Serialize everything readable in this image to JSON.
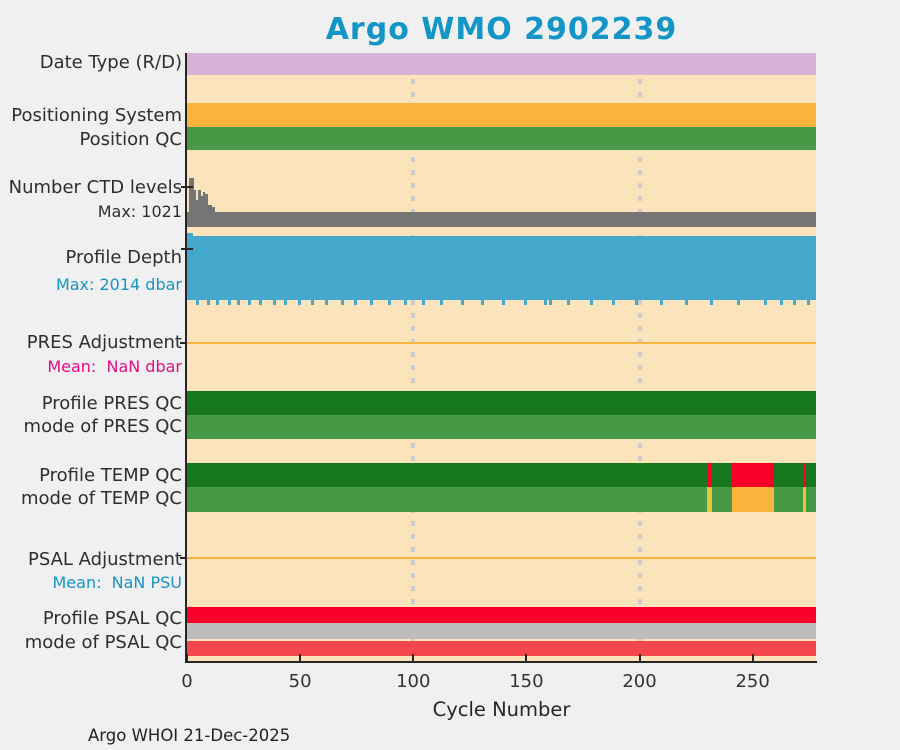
{
  "title": "Argo WMO 2902239",
  "footer": "Argo WHOI 21-Dec-2025",
  "colors": {
    "title": "#1495C8",
    "fig_bg": "#F0F0F0",
    "plot_bg": "#FBE4BC",
    "axis": "#262626",
    "grid": "#CBCBCB",
    "label_text": "#2E2E2E",
    "blue_text": "#1495C8",
    "magenta_text": "#E50C88",
    "plum": "#D8B3D9",
    "orange": "#FBB340",
    "green": "#489946",
    "dark_green": "#16771E",
    "gray": "#757575",
    "blue": "#44A8CD",
    "bright_red": "#FA0028",
    "coral_red": "#F4464D",
    "gray_band": "#BDBDBD",
    "gold": "#EEC23E"
  },
  "left_labels": [
    {
      "text": "Date Type (R/D)",
      "kind": "main",
      "color": "#2E2E2E"
    },
    {
      "text": "Positioning System",
      "kind": "main",
      "color": "#2E2E2E"
    },
    {
      "text": "Position QC",
      "kind": "main",
      "color": "#2E2E2E"
    },
    {
      "text": "Number CTD levels",
      "kind": "main",
      "color": "#2E2E2E"
    },
    {
      "text": "Max: 1021",
      "kind": "sub",
      "color": "#2E2E2E"
    },
    {
      "text": "Profile Depth",
      "kind": "main",
      "color": "#2E2E2E"
    },
    {
      "text": "Max: 2014 dbar",
      "kind": "sub",
      "color": "#1495C8"
    },
    {
      "text": "PRES Adjustment",
      "kind": "main",
      "color": "#2E2E2E"
    },
    {
      "text": "Mean:  NaN dbar",
      "kind": "sub",
      "color": "#E50C88"
    },
    {
      "text": "Profile PRES QC",
      "kind": "main",
      "color": "#2E2E2E"
    },
    {
      "text": "mode of PRES QC",
      "kind": "main",
      "color": "#2E2E2E"
    },
    {
      "text": "Profile TEMP QC",
      "kind": "main",
      "color": "#2E2E2E"
    },
    {
      "text": "mode of TEMP QC",
      "kind": "main",
      "color": "#2E2E2E"
    },
    {
      "text": "PSAL Adjustment",
      "kind": "main",
      "color": "#2E2E2E"
    },
    {
      "text": "Mean:  NaN PSU",
      "kind": "sub",
      "color": "#1495C8"
    },
    {
      "text": "Profile PSAL QC",
      "kind": "main",
      "color": "#2E2E2E"
    },
    {
      "text": "mode of PSAL QC",
      "kind": "main",
      "color": "#2E2E2E"
    }
  ],
  "chart_data": {
    "type": "heatmap",
    "title": "Argo WMO 2902239",
    "x": {
      "label": "Cycle Number",
      "min": 0,
      "max": 278,
      "ticks": [
        0,
        50,
        100,
        150,
        200,
        250
      ],
      "gridlines": [
        100,
        200
      ]
    },
    "rows": [
      {
        "id": "date_type",
        "label": "Date Type (R/D)",
        "kind": "segments",
        "segments": [
          {
            "from": 0,
            "to": 278,
            "color": "#D8B3D9"
          }
        ]
      },
      {
        "id": "positioning_system",
        "label": "Positioning System",
        "kind": "segments",
        "segments": [
          {
            "from": 0,
            "to": 278,
            "color": "#FBB340"
          }
        ]
      },
      {
        "id": "position_qc",
        "label": "Position QC",
        "kind": "segments",
        "segments": [
          {
            "from": 0,
            "to": 278,
            "color": "#489946"
          }
        ]
      },
      {
        "id": "ctd_levels",
        "label": "Number CTD levels",
        "kind": "histogram",
        "max": 1021,
        "baseline": 310,
        "color": "#757575",
        "spikes": [
          [
            1,
            1021
          ],
          [
            2,
            1021
          ],
          [
            3,
            773
          ],
          [
            4,
            567
          ],
          [
            5,
            773
          ],
          [
            6,
            650
          ],
          [
            7,
            730
          ],
          [
            8,
            690
          ],
          [
            9,
            470
          ],
          [
            10,
            470
          ],
          [
            11,
            420
          ]
        ]
      },
      {
        "id": "profile_depth",
        "label": "Profile Depth",
        "kind": "depth",
        "max_dbar": 2014,
        "color": "#44A8CD",
        "max_cycles": [
          0,
          2.5
        ],
        "deep_cycles": [
          4,
          9,
          13,
          18,
          22,
          27,
          32,
          38,
          43,
          49,
          55,
          61,
          68,
          74,
          81,
          89,
          96,
          104,
          112,
          121,
          130,
          139,
          149,
          158,
          160,
          168,
          178,
          188,
          198,
          209,
          220,
          231,
          243,
          255,
          262,
          268,
          274
        ]
      },
      {
        "id": "pres_adjustment",
        "label": "PRES Adjustment",
        "kind": "line",
        "mean": "NaN dbar",
        "color": "#FBB340"
      },
      {
        "id": "profile_pres_qc",
        "label": "Profile PRES QC",
        "kind": "segments",
        "segments": [
          {
            "from": 0,
            "to": 278,
            "color": "#16771E"
          }
        ]
      },
      {
        "id": "mode_pres_qc",
        "label": "mode of PRES QC",
        "kind": "segments",
        "segments": [
          {
            "from": 0,
            "to": 278,
            "color": "#489946"
          }
        ]
      },
      {
        "id": "profile_temp_qc",
        "label": "Profile TEMP QC",
        "kind": "segments",
        "segments": [
          {
            "from": 0,
            "to": 229.8,
            "color": "#16771E"
          },
          {
            "from": 229.8,
            "to": 232,
            "color": "#FA0028"
          },
          {
            "from": 232,
            "to": 240.9,
            "color": "#16771E"
          },
          {
            "from": 240.9,
            "to": 259.4,
            "color": "#FA0028"
          },
          {
            "from": 259.4,
            "to": 272.3,
            "color": "#16771E"
          },
          {
            "from": 272.3,
            "to": 273.8,
            "color": "#FA0028"
          },
          {
            "from": 273.8,
            "to": 278,
            "color": "#16771E"
          }
        ]
      },
      {
        "id": "mode_temp_qc",
        "label": "mode of TEMP QC",
        "kind": "segments",
        "segments": [
          {
            "from": 0,
            "to": 229.8,
            "color": "#489946"
          },
          {
            "from": 229.8,
            "to": 232,
            "color": "#EEC23E"
          },
          {
            "from": 232,
            "to": 240.9,
            "color": "#489946"
          },
          {
            "from": 240.9,
            "to": 259.4,
            "color": "#FBB340"
          },
          {
            "from": 259.4,
            "to": 272.3,
            "color": "#489946"
          },
          {
            "from": 272.3,
            "to": 273.8,
            "color": "#EEC23E"
          },
          {
            "from": 273.8,
            "to": 278,
            "color": "#489946"
          }
        ]
      },
      {
        "id": "psal_adjustment",
        "label": "PSAL Adjustment",
        "kind": "line",
        "mean": "NaN PSU",
        "color": "#FBB340"
      },
      {
        "id": "profile_psal_qc",
        "label": "Profile PSAL QC",
        "kind": "segments",
        "segments": [
          {
            "from": 0,
            "to": 278,
            "color": "#FA0028"
          }
        ]
      },
      {
        "id": "psal_qc_gray",
        "label": "",
        "kind": "segments",
        "segments": [
          {
            "from": 0,
            "to": 278,
            "color": "#BDBDBD"
          }
        ]
      },
      {
        "id": "mode_psal_qc",
        "label": "mode of PSAL QC",
        "kind": "segments",
        "segments": [
          {
            "from": 0,
            "to": 278,
            "color": "#F4464D"
          }
        ]
      }
    ]
  }
}
